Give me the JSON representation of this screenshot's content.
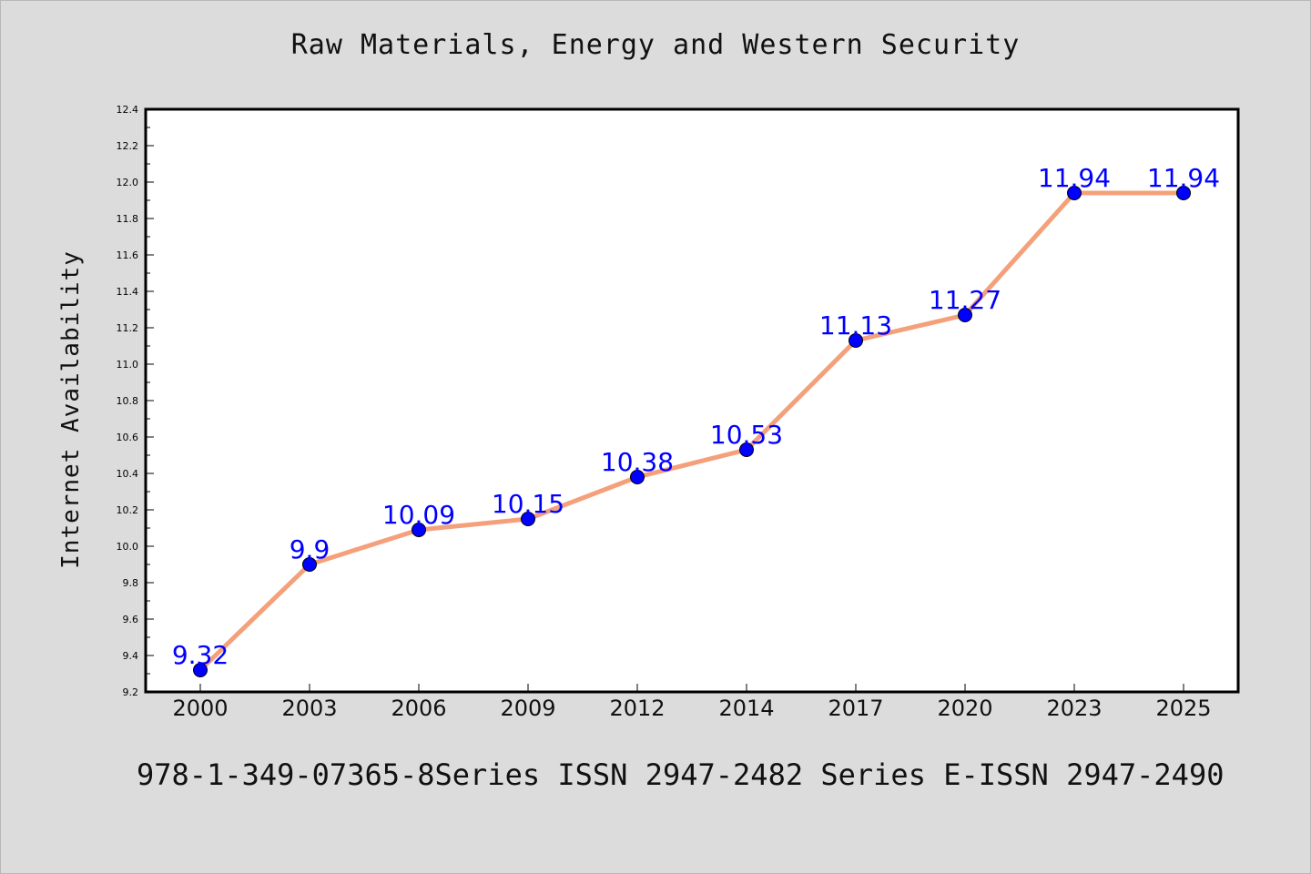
{
  "chart_data": {
    "type": "line",
    "title": "Raw Materials, Energy and Western Security",
    "xlabel": "",
    "ylabel": "Internet Availability",
    "categories": [
      "2000",
      "2003",
      "2006",
      "2009",
      "2012",
      "2014",
      "2017",
      "2020",
      "2023",
      "2025"
    ],
    "series": [
      {
        "values": [
          9.32,
          9.9,
          10.09,
          10.15,
          10.38,
          10.53,
          11.13,
          11.27,
          11.94,
          11.94
        ],
        "data_labels": [
          "9.32",
          "9.9",
          "10.09",
          "10.15",
          "10.38",
          "10.53",
          "11.13",
          "11.27",
          "11.94",
          "11.94"
        ],
        "line_color": "#f4a07a",
        "marker_color": "#0000ff",
        "label_color": "#0000ff"
      }
    ],
    "ylim": [
      9.2,
      12.4
    ],
    "yticks": [
      "9.2",
      "9.4",
      "9.6",
      "9.8",
      "10.0",
      "10.2",
      "10.4",
      "10.6",
      "10.8",
      "11.0",
      "11.2",
      "11.4",
      "11.6",
      "11.8",
      "12.0",
      "12.2",
      "12.4"
    ],
    "grid": false,
    "legend": "none"
  },
  "footer": {
    "text": "978-1-349-07365-8Series ISSN 2947-2482 Series E-ISSN 2947-2490"
  },
  "colors": {
    "background": "#dcdcdc",
    "plot_background": "#ffffff"
  }
}
